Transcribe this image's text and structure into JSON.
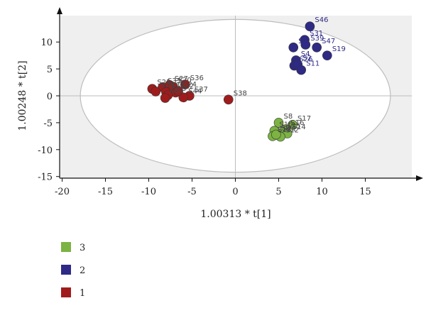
{
  "chart_data": {
    "type": "scatter",
    "title": "",
    "xlabel": "1.00313 * t[1]",
    "ylabel": "1.00248 * t[2]",
    "xlim": [
      -20,
      20
    ],
    "ylim": [
      -15,
      15
    ],
    "xticks": [
      -20,
      -15,
      -10,
      -5,
      0,
      5,
      10,
      15
    ],
    "yticks": [
      -15,
      -10,
      -5,
      0,
      5,
      10
    ],
    "grid": false,
    "ellipse": {
      "cx": 0,
      "cy": 0,
      "rx": 17.9,
      "ry": 14.2
    },
    "legend_position": "bottom-left",
    "series": [
      {
        "name": "3",
        "color": "#7cb342",
        "points": [
          {
            "label": "S8",
            "x": 5.0,
            "y": -5.0
          },
          {
            "label": "S17",
            "x": 6.6,
            "y": -5.4
          },
          {
            "label": "S16",
            "x": 5.8,
            "y": -6.2
          },
          {
            "label": "S10",
            "x": 4.5,
            "y": -6.5
          },
          {
            "label": "S25",
            "x": 5.4,
            "y": -6.8
          },
          {
            "label": "S14",
            "x": 6.0,
            "y": -7.0
          },
          {
            "label": "S21",
            "x": 4.9,
            "y": -7.3
          },
          {
            "label": "S18",
            "x": 4.3,
            "y": -7.5
          },
          {
            "label": "S12",
            "x": 5.2,
            "y": -7.6
          },
          {
            "label": "S9",
            "x": 4.7,
            "y": -7.2
          }
        ]
      },
      {
        "name": "2",
        "color": "#2e2a85",
        "points": [
          {
            "label": "S46",
            "x": 8.6,
            "y": 12.9
          },
          {
            "label": "S31",
            "x": 8.0,
            "y": 10.4
          },
          {
            "label": "S39",
            "x": 8.1,
            "y": 9.5
          },
          {
            "label": "S5",
            "x": 6.7,
            "y": 9.0
          },
          {
            "label": "S47",
            "x": 9.4,
            "y": 9.0
          },
          {
            "label": "S19",
            "x": 10.6,
            "y": 7.5
          },
          {
            "label": "S4",
            "x": 7.0,
            "y": 6.6
          },
          {
            "label": "S26",
            "x": 6.8,
            "y": 5.6
          },
          {
            "label": "S2",
            "x": 7.2,
            "y": 5.8
          },
          {
            "label": "S11",
            "x": 7.6,
            "y": 4.8
          }
        ]
      },
      {
        "name": "1",
        "color": "#a01c1c",
        "points": [
          {
            "label": "S25",
            "x": -9.6,
            "y": 1.3
          },
          {
            "label": "S33",
            "x": -8.4,
            "y": 1.6
          },
          {
            "label": "S27",
            "x": -7.6,
            "y": 2.0
          },
          {
            "label": "S20",
            "x": -7.2,
            "y": 1.7
          },
          {
            "label": "S36",
            "x": -5.8,
            "y": 2.1
          },
          {
            "label": "S34",
            "x": -9.2,
            "y": 0.8
          },
          {
            "label": "S35",
            "x": -8.0,
            "y": 0.7
          },
          {
            "label": "S22",
            "x": -6.9,
            "y": 0.6
          },
          {
            "label": "S37",
            "x": -5.3,
            "y": 0.0
          },
          {
            "label": "S13",
            "x": -7.8,
            "y": 0.1
          },
          {
            "label": "S43",
            "x": -8.1,
            "y": -0.4
          },
          {
            "label": "S44",
            "x": -6.0,
            "y": -0.3
          },
          {
            "label": "S24",
            "x": -6.6,
            "y": 0.9
          },
          {
            "label": "S38",
            "x": -0.8,
            "y": -0.7
          }
        ]
      }
    ]
  }
}
